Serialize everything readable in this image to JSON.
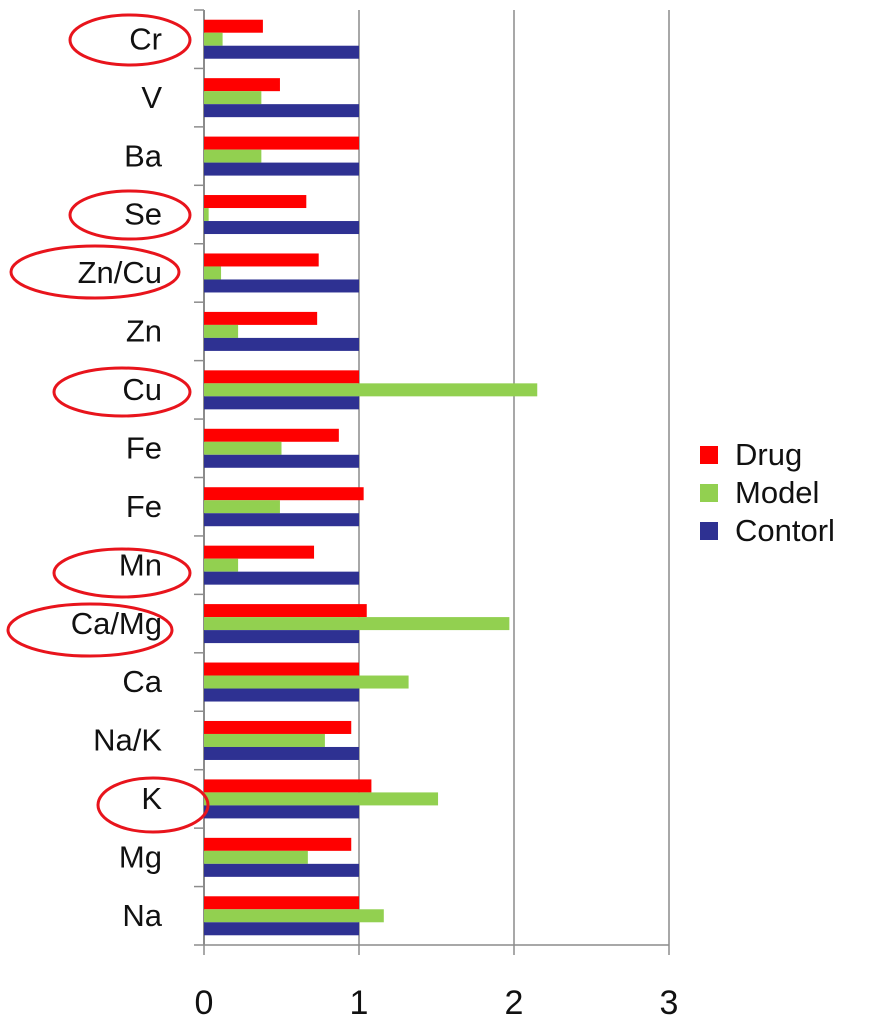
{
  "chart_data": {
    "type": "bar",
    "orientation": "horizontal",
    "categories": [
      "Cr",
      "V",
      "Ba",
      "Se",
      "Zn/Cu",
      "Zn",
      "Cu",
      "Fe",
      "Fe",
      "Mn",
      "Ca/Mg",
      "Ca",
      "Na/K",
      "K",
      "Mg",
      "Na"
    ],
    "series": [
      {
        "name": "Drug",
        "color": "#ff0000",
        "values": [
          0.38,
          0.49,
          1.0,
          0.66,
          0.74,
          0.73,
          1.0,
          0.87,
          1.03,
          0.71,
          1.05,
          1.0,
          0.95,
          1.08,
          0.95,
          1.0
        ]
      },
      {
        "name": "Model",
        "color": "#92d050",
        "values": [
          0.12,
          0.37,
          0.37,
          0.03,
          0.11,
          0.22,
          2.15,
          0.5,
          0.49,
          0.22,
          1.97,
          1.32,
          0.78,
          1.51,
          0.67,
          1.16
        ]
      },
      {
        "name": "Contorl",
        "color": "#2e3192",
        "values": [
          1,
          1,
          1,
          1,
          1,
          1,
          1,
          1,
          1,
          1,
          1,
          1,
          1,
          1,
          1,
          1
        ]
      }
    ],
    "xlim": [
      0,
      3
    ],
    "xticks": [
      0,
      1,
      2,
      3
    ],
    "grid": true,
    "legend": "right"
  }
}
